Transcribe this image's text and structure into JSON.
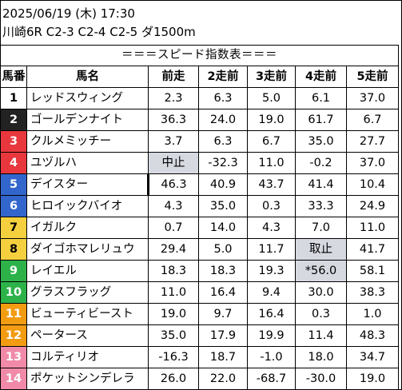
{
  "header": {
    "datetime": "2025/06/19 (木) 17:30",
    "race": "川崎6R C2-3 C2-4 C2-5 ダ1500m"
  },
  "table": {
    "title": "＝＝＝スピード指数表＝＝＝",
    "columns": [
      "馬番",
      "馬名",
      "前走",
      "2走前",
      "3走前",
      "4走前",
      "5走前"
    ],
    "rows": [
      {
        "num": "1",
        "name": "レッドスウィング",
        "bg": "#ffffff",
        "fg": "#000000",
        "vals": [
          "2.3",
          "6.3",
          "5.0",
          "6.1",
          "37.0"
        ]
      },
      {
        "num": "2",
        "name": "ゴールデンナイト",
        "bg": "#222222",
        "fg": "#ffffff",
        "vals": [
          "36.3",
          "24.0",
          "19.0",
          "61.7",
          "6.7"
        ]
      },
      {
        "num": "3",
        "name": "クルメミッチー",
        "bg": "#e8383d",
        "fg": "#ffffff",
        "vals": [
          "3.7",
          "6.3",
          "6.7",
          "35.0",
          "27.7"
        ]
      },
      {
        "num": "4",
        "name": "ユヅルハ",
        "bg": "#e8383d",
        "fg": "#ffffff",
        "vals": [
          "中止",
          "-32.3",
          "11.0",
          "-0.2",
          "37.0"
        ]
      },
      {
        "num": "5",
        "name": "デイスター",
        "bg": "#3366cc",
        "fg": "#ffffff",
        "vals": [
          "46.3",
          "40.9",
          "43.7",
          "41.4",
          "10.4"
        ]
      },
      {
        "num": "6",
        "name": "ヒロイックバイオ",
        "bg": "#3366cc",
        "fg": "#ffffff",
        "vals": [
          "4.3",
          "35.0",
          "0.3",
          "33.3",
          "24.9"
        ]
      },
      {
        "num": "7",
        "name": "イガルク",
        "bg": "#f4d03f",
        "fg": "#000000",
        "vals": [
          "0.7",
          "14.0",
          "4.3",
          "7.0",
          "11.0"
        ]
      },
      {
        "num": "8",
        "name": "ダイゴホマレリュウ",
        "bg": "#f4d03f",
        "fg": "#000000",
        "vals": [
          "29.4",
          "5.0",
          "11.7",
          "取止",
          "41.7"
        ]
      },
      {
        "num": "9",
        "name": "レイエル",
        "bg": "#2db24a",
        "fg": "#ffffff",
        "vals": [
          "18.3",
          "18.3",
          "19.3",
          "*56.0",
          "58.1"
        ]
      },
      {
        "num": "10",
        "name": "グラスフラッグ",
        "bg": "#2db24a",
        "fg": "#ffffff",
        "vals": [
          "11.0",
          "16.4",
          "9.4",
          "30.0",
          "38.3"
        ]
      },
      {
        "num": "11",
        "name": "ビューティビースト",
        "bg": "#f39c12",
        "fg": "#ffffff",
        "vals": [
          "19.0",
          "9.7",
          "16.4",
          "0.3",
          "1.0"
        ]
      },
      {
        "num": "12",
        "name": "ペータース",
        "bg": "#f39c12",
        "fg": "#ffffff",
        "vals": [
          "35.0",
          "17.9",
          "19.9",
          "11.4",
          "48.3"
        ]
      },
      {
        "num": "13",
        "name": "コルティリオ",
        "bg": "#f08aa8",
        "fg": "#ffffff",
        "vals": [
          "-16.3",
          "18.7",
          "-1.0",
          "18.0",
          "34.7"
        ]
      },
      {
        "num": "14",
        "name": "ポケットシンデレラ",
        "bg": "#f08aa8",
        "fg": "#ffffff",
        "vals": [
          "26.0",
          "22.0",
          "-68.7",
          "-30.0",
          "19.0"
        ]
      }
    ]
  },
  "highlights": [
    {
      "row": 3,
      "col": 0,
      "color": "#d6d9e0"
    },
    {
      "row": 7,
      "col": 3,
      "color": "#d6d9e0"
    },
    {
      "row": 8,
      "col": 3,
      "color": "#d6d9e0"
    }
  ]
}
